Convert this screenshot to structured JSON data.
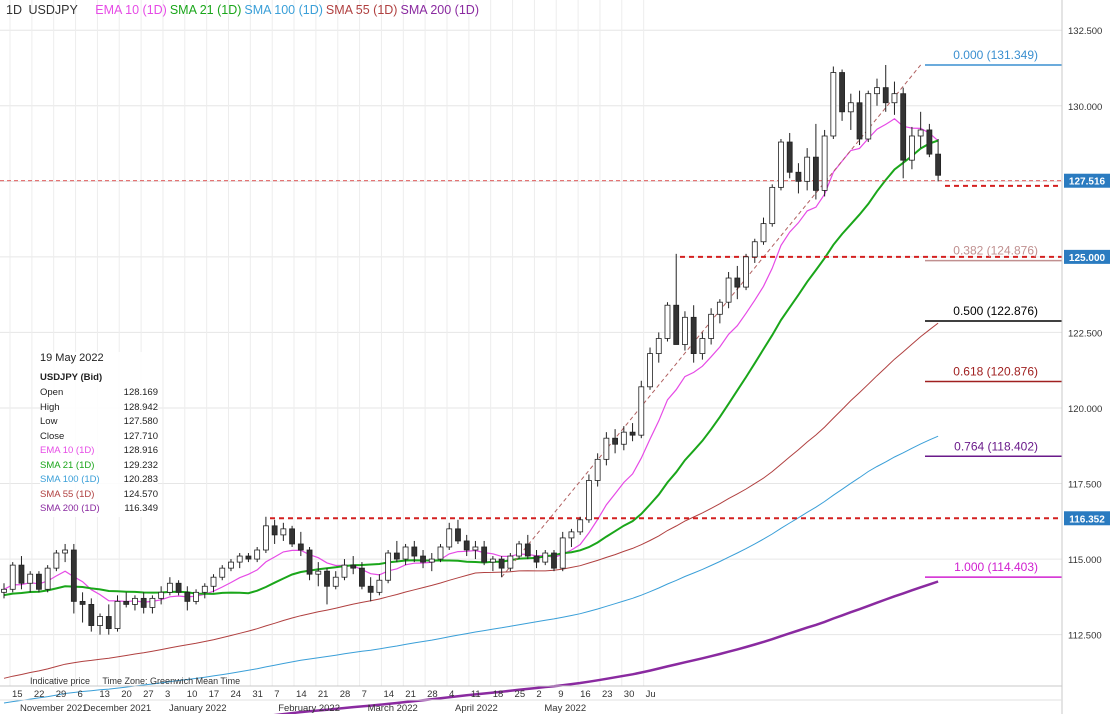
{
  "header": {
    "timeframe": "1D",
    "symbol": "USDJPY",
    "indicators": [
      {
        "label": "EMA 10",
        "period": "(1D)",
        "color": "#e64be6"
      },
      {
        "label": "SMA 21",
        "period": "(1D)",
        "color": "#1aa61a"
      },
      {
        "label": "SMA 100",
        "period": "(1D)",
        "color": "#3a9fd8"
      },
      {
        "label": "SMA 55",
        "period": "(1D)",
        "color": "#b04040"
      },
      {
        "label": "SMA 200",
        "period": "(1D)",
        "color": "#8a2aa0"
      }
    ]
  },
  "info_panel": {
    "date": "19 May 2022",
    "symbol": "USDJPY (Bid)",
    "rows": [
      {
        "label": "Open",
        "value": "128.169"
      },
      {
        "label": "High",
        "value": "128.942"
      },
      {
        "label": "Low",
        "value": "127.580"
      },
      {
        "label": "Close",
        "value": "127.710"
      },
      {
        "label": "EMA 10  (1D)",
        "value": "128.916",
        "color": "#e64be6"
      },
      {
        "label": "SMA 21  (1D)",
        "value": "129.232",
        "color": "#1aa61a"
      },
      {
        "label": "SMA 100  (1D)",
        "value": "120.283",
        "color": "#3a9fd8"
      },
      {
        "label": "SMA 55  (1D)",
        "value": "124.570",
        "color": "#b04040"
      },
      {
        "label": "SMA 200  (1D)",
        "value": "116.349",
        "color": "#8a2aa0"
      }
    ]
  },
  "footer": {
    "indicative": "Indicative price",
    "timezone": "Time Zone: Greenwich Mean Time"
  },
  "chart_data": {
    "type": "candlestick",
    "title": "USDJPY",
    "ylim": [
      110.8,
      133.5
    ],
    "y_ticks": [
      {
        "value": 112.5,
        "label": "112.500"
      },
      {
        "value": 115.0,
        "label": "115.000"
      },
      {
        "value": 117.5,
        "label": "117.500"
      },
      {
        "value": 120.0,
        "label": "120.000"
      },
      {
        "value": 122.5,
        "label": "122.500"
      },
      {
        "value": 125.0,
        "label": "125.000"
      },
      {
        "value": 127.5,
        "label": "127.500"
      },
      {
        "value": 130.0,
        "label": "130.000"
      },
      {
        "value": 132.5,
        "label": "132.500"
      }
    ],
    "x_day_ticks": [
      "15",
      "22",
      "29",
      "6",
      "13",
      "20",
      "27",
      "3",
      "10",
      "17",
      "24",
      "31",
      "7",
      "14",
      "21",
      "28",
      "7",
      "14",
      "21",
      "28",
      "4",
      "11",
      "18",
      "25",
      "2",
      "9",
      "16",
      "23",
      "30",
      "Ju"
    ],
    "x_month_labels": [
      "November 2021",
      "December 2021",
      "January 2022",
      "February 2022",
      "March 2022",
      "April 2022",
      "May 2022"
    ],
    "price_tags": [
      {
        "label": "127.516",
        "value": 127.52,
        "bg": "#2a7bc0"
      },
      {
        "label": "125.000",
        "value": 125.0,
        "bg": "#2a7bc0"
      },
      {
        "label": "116.352",
        "value": 116.35,
        "bg": "#2a7bc0"
      }
    ],
    "fibonacci": [
      {
        "label": "0.000 (131.349)",
        "value": 131.349,
        "color": "#3a8fd0"
      },
      {
        "label": "0.382 (124.876)",
        "value": 124.876,
        "color": "#c09090"
      },
      {
        "label": "0.500 (122.876)",
        "value": 122.876,
        "color": "#000000"
      },
      {
        "label": "0.618 (120.876)",
        "value": 120.876,
        "color": "#a02020"
      },
      {
        "label": "0.764 (118.402)",
        "value": 118.402,
        "color": "#6a1a8a"
      },
      {
        "label": "1.000 (114.403)",
        "value": 114.403,
        "color": "#d020d0"
      }
    ],
    "horizontal_levels": [
      127.52,
      125.0,
      116.35
    ],
    "candles_ohlc": [
      [
        113.9,
        114.2,
        113.7,
        114.0
      ],
      [
        114.0,
        114.9,
        113.9,
        114.8
      ],
      [
        114.8,
        115.1,
        114.0,
        114.2
      ],
      [
        114.2,
        114.6,
        113.9,
        114.5
      ],
      [
        114.5,
        114.6,
        113.9,
        114.0
      ],
      [
        114.0,
        114.8,
        113.9,
        114.7
      ],
      [
        114.7,
        115.3,
        114.6,
        115.2
      ],
      [
        115.2,
        115.5,
        114.9,
        115.3
      ],
      [
        115.3,
        115.5,
        113.2,
        113.6
      ],
      [
        113.6,
        113.9,
        112.9,
        113.5
      ],
      [
        113.5,
        113.7,
        112.6,
        112.8
      ],
      [
        112.8,
        113.2,
        112.5,
        113.1
      ],
      [
        113.1,
        113.5,
        112.5,
        112.7
      ],
      [
        112.7,
        113.8,
        112.6,
        113.6
      ],
      [
        113.6,
        113.9,
        113.4,
        113.5
      ],
      [
        113.5,
        113.8,
        113.3,
        113.7
      ],
      [
        113.7,
        113.9,
        113.2,
        113.4
      ],
      [
        113.4,
        113.8,
        113.2,
        113.7
      ],
      [
        113.7,
        114.1,
        113.5,
        113.9
      ],
      [
        113.9,
        114.4,
        113.8,
        114.2
      ],
      [
        114.2,
        114.3,
        113.8,
        113.9
      ],
      [
        113.9,
        114.1,
        113.3,
        113.6
      ],
      [
        113.6,
        114.0,
        113.5,
        113.9
      ],
      [
        113.9,
        114.2,
        113.7,
        114.1
      ],
      [
        114.1,
        114.5,
        113.9,
        114.4
      ],
      [
        114.4,
        114.8,
        114.3,
        114.7
      ],
      [
        114.7,
        115.0,
        114.6,
        114.9
      ],
      [
        114.9,
        115.2,
        114.7,
        115.1
      ],
      [
        115.1,
        115.2,
        114.9,
        115.0
      ],
      [
        115.0,
        115.4,
        114.9,
        115.3
      ],
      [
        115.3,
        116.4,
        115.2,
        116.1
      ],
      [
        116.1,
        116.3,
        115.5,
        115.8
      ],
      [
        115.8,
        116.2,
        115.6,
        116.0
      ],
      [
        116.0,
        116.1,
        115.4,
        115.5
      ],
      [
        115.5,
        115.9,
        115.1,
        115.3
      ],
      [
        115.3,
        115.4,
        114.3,
        114.5
      ],
      [
        114.5,
        114.9,
        114.1,
        114.6
      ],
      [
        114.6,
        114.7,
        113.5,
        114.1
      ],
      [
        114.1,
        114.6,
        114.0,
        114.4
      ],
      [
        114.4,
        115.0,
        114.3,
        114.8
      ],
      [
        114.8,
        115.1,
        114.5,
        114.7
      ],
      [
        114.7,
        114.9,
        114.0,
        114.1
      ],
      [
        114.1,
        114.4,
        113.6,
        113.9
      ],
      [
        113.9,
        114.5,
        113.8,
        114.3
      ],
      [
        114.3,
        115.3,
        114.2,
        115.2
      ],
      [
        115.2,
        115.6,
        114.9,
        115.0
      ],
      [
        115.0,
        115.5,
        114.8,
        115.4
      ],
      [
        115.4,
        115.6,
        114.9,
        115.1
      ],
      [
        115.1,
        115.3,
        114.7,
        114.9
      ],
      [
        114.9,
        115.2,
        114.6,
        115.0
      ],
      [
        115.0,
        115.5,
        114.9,
        115.4
      ],
      [
        115.4,
        116.2,
        115.3,
        116.0
      ],
      [
        116.0,
        116.3,
        115.5,
        115.6
      ],
      [
        115.6,
        115.8,
        115.1,
        115.3
      ],
      [
        115.3,
        115.6,
        115.0,
        115.4
      ],
      [
        115.4,
        115.6,
        114.8,
        114.9
      ],
      [
        114.9,
        115.1,
        114.6,
        115.0
      ],
      [
        115.0,
        115.1,
        114.4,
        114.7
      ],
      [
        114.7,
        115.2,
        114.6,
        115.1
      ],
      [
        115.1,
        115.6,
        115.0,
        115.5
      ],
      [
        115.5,
        115.8,
        115.0,
        115.1
      ],
      [
        115.1,
        115.3,
        114.7,
        114.9
      ],
      [
        114.9,
        115.3,
        114.8,
        115.2
      ],
      [
        115.2,
        115.3,
        114.6,
        114.7
      ],
      [
        114.7,
        115.9,
        114.6,
        115.7
      ],
      [
        115.7,
        116.0,
        115.4,
        115.9
      ],
      [
        115.9,
        116.4,
        115.8,
        116.3
      ],
      [
        116.3,
        117.8,
        116.2,
        117.6
      ],
      [
        117.6,
        118.5,
        117.4,
        118.3
      ],
      [
        118.3,
        119.2,
        118.1,
        119.0
      ],
      [
        119.0,
        119.3,
        118.5,
        118.8
      ],
      [
        118.8,
        119.4,
        118.6,
        119.2
      ],
      [
        119.2,
        119.5,
        118.9,
        119.1
      ],
      [
        119.1,
        120.9,
        119.0,
        120.7
      ],
      [
        120.7,
        122.0,
        120.6,
        121.8
      ],
      [
        121.8,
        122.5,
        121.5,
        122.3
      ],
      [
        122.3,
        123.5,
        122.2,
        123.4
      ],
      [
        123.4,
        125.1,
        123.2,
        122.1
      ],
      [
        122.1,
        123.2,
        121.9,
        123.0
      ],
      [
        123.0,
        123.4,
        121.5,
        121.8
      ],
      [
        121.8,
        122.5,
        121.6,
        122.3
      ],
      [
        122.3,
        123.3,
        122.1,
        123.1
      ],
      [
        123.1,
        123.6,
        122.8,
        123.5
      ],
      [
        123.5,
        124.5,
        123.3,
        124.3
      ],
      [
        124.3,
        124.7,
        123.6,
        124.0
      ],
      [
        124.0,
        125.1,
        123.9,
        125.0
      ],
      [
        125.0,
        125.6,
        124.8,
        125.5
      ],
      [
        125.5,
        126.3,
        125.4,
        126.1
      ],
      [
        126.1,
        127.4,
        126.0,
        127.3
      ],
      [
        127.3,
        128.9,
        127.2,
        128.8
      ],
      [
        128.8,
        129.1,
        127.6,
        127.8
      ],
      [
        127.8,
        128.1,
        127.1,
        127.5
      ],
      [
        127.5,
        128.6,
        127.2,
        128.3
      ],
      [
        128.3,
        129.4,
        126.9,
        127.2
      ],
      [
        127.2,
        129.2,
        127.0,
        129.0
      ],
      [
        129.0,
        131.3,
        128.9,
        131.1
      ],
      [
        131.1,
        131.2,
        129.5,
        129.8
      ],
      [
        129.8,
        130.4,
        129.2,
        130.1
      ],
      [
        130.1,
        130.5,
        128.7,
        128.9
      ],
      [
        128.9,
        130.5,
        128.8,
        130.4
      ],
      [
        130.4,
        130.9,
        130.0,
        130.6
      ],
      [
        130.6,
        131.35,
        129.8,
        130.1
      ],
      [
        130.1,
        130.8,
        129.7,
        130.4
      ],
      [
        130.4,
        130.6,
        127.6,
        128.2
      ],
      [
        128.2,
        129.3,
        127.9,
        129.0
      ],
      [
        129.0,
        129.8,
        128.6,
        129.2
      ],
      [
        129.2,
        129.4,
        128.3,
        128.4
      ],
      [
        128.4,
        128.9,
        127.5,
        127.7
      ]
    ]
  }
}
